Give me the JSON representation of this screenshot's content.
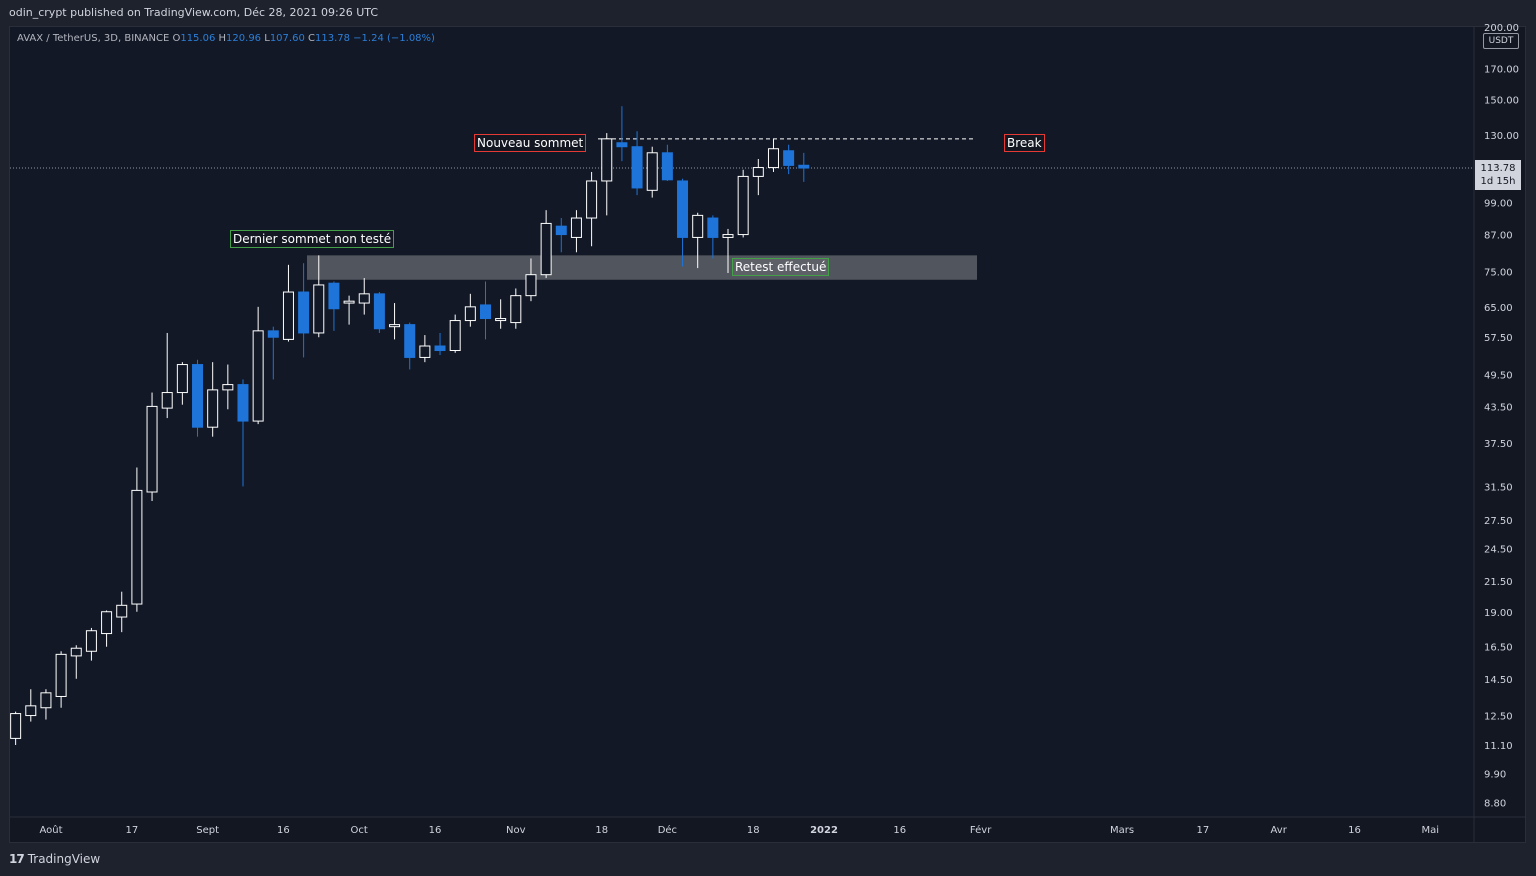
{
  "header": {
    "published": "odin_crypt published on TradingView.com, Déc 28, 2021 09:26 UTC"
  },
  "legend": {
    "symbol": "AVAX / TetherUS, 3D, BINANCE",
    "o_label": "O",
    "o_value": "115.06",
    "h_label": "H",
    "h_value": "120.96",
    "l_label": "L",
    "l_value": "107.60",
    "c_label": "C",
    "c_value": "113.78",
    "change": "−1.24 (−1.08%)"
  },
  "price_axis": {
    "currency": "USDT",
    "top_partial": "200.00",
    "current_price": "113.78",
    "countdown": "1d 15h"
  },
  "annotations": {
    "nouveau_sommet": "Nouveau sommet",
    "break": "Break",
    "dernier_sommet": "Dernier sommet non testé",
    "retest": "Retest effectué"
  },
  "footer": {
    "brand": "TradingView"
  },
  "colors": {
    "background": "#121826",
    "up_candle": "#ffffff",
    "down_candle": "#1e74d8",
    "zone": "#5d6067",
    "red_box": "#e53935",
    "green_box": "#43a047"
  },
  "chart_data": {
    "type": "candlestick",
    "scale": "log",
    "ylim": [
      8.0,
      200.0
    ],
    "yticks": [
      170,
      150,
      130,
      99,
      87,
      75,
      65,
      57.5,
      49.5,
      43.5,
      37.5,
      31.5,
      27.5,
      24.5,
      21.5,
      19,
      16.5,
      14.5,
      12.5,
      11.1,
      9.9,
      8.8
    ],
    "ytick_labels": [
      "170.00",
      "150.00",
      "130.00",
      "99.00",
      "87.00",
      "75.00",
      "65.00",
      "57.50",
      "49.50",
      "43.50",
      "37.50",
      "31.50",
      "27.50",
      "24.50",
      "21.50",
      "19.00",
      "16.50",
      "14.50",
      "12.50",
      "11.10",
      "9.90",
      "8.80"
    ],
    "xlim": [
      "2021-07-22",
      "2022-05-30"
    ],
    "xticks": [
      {
        "date": "2021-08-01",
        "label": "Août"
      },
      {
        "date": "2021-08-17",
        "label": "17"
      },
      {
        "date": "2021-09-01",
        "label": "Sept"
      },
      {
        "date": "2021-09-16",
        "label": "16"
      },
      {
        "date": "2021-10-01",
        "label": "Oct"
      },
      {
        "date": "2021-10-16",
        "label": "16"
      },
      {
        "date": "2021-11-01",
        "label": "Nov"
      },
      {
        "date": "2021-11-18",
        "label": "18"
      },
      {
        "date": "2021-12-01",
        "label": "Déc"
      },
      {
        "date": "2021-12-18",
        "label": "18"
      },
      {
        "date": "2022-01-01",
        "label": "2022"
      },
      {
        "date": "2022-01-16",
        "label": "16"
      },
      {
        "date": "2022-02-01",
        "label": "Févr"
      },
      {
        "date": "2022-03-01",
        "label": "Mars"
      },
      {
        "date": "2022-03-17",
        "label": "17"
      },
      {
        "date": "2022-04-01",
        "label": "Avr"
      },
      {
        "date": "2022-04-16",
        "label": "16"
      },
      {
        "date": "2022-05-01",
        "label": "Mai"
      }
    ],
    "candles": [
      {
        "date": "2021-07-22",
        "o": 11.2,
        "h": 11.6,
        "l": 10.9,
        "c": 11.5
      },
      {
        "date": "2021-07-25",
        "o": 11.4,
        "h": 12.7,
        "l": 11.1,
        "c": 12.6
      },
      {
        "date": "2021-07-28",
        "o": 12.5,
        "h": 13.9,
        "l": 12.2,
        "c": 13.0
      },
      {
        "date": "2021-07-31",
        "o": 12.9,
        "h": 13.9,
        "l": 12.3,
        "c": 13.7
      },
      {
        "date": "2021-08-03",
        "o": 13.5,
        "h": 16.2,
        "l": 12.9,
        "c": 16.0
      },
      {
        "date": "2021-08-06",
        "o": 15.9,
        "h": 16.6,
        "l": 14.5,
        "c": 16.4
      },
      {
        "date": "2021-08-09",
        "o": 16.2,
        "h": 17.8,
        "l": 15.6,
        "c": 17.6
      },
      {
        "date": "2021-08-12",
        "o": 17.4,
        "h": 19.1,
        "l": 16.5,
        "c": 19.0
      },
      {
        "date": "2021-08-15",
        "o": 18.6,
        "h": 20.6,
        "l": 17.5,
        "c": 19.5
      },
      {
        "date": "2021-08-18",
        "o": 19.6,
        "h": 34.0,
        "l": 19.0,
        "c": 31.0
      },
      {
        "date": "2021-08-21",
        "o": 30.8,
        "h": 46.0,
        "l": 29.7,
        "c": 43.5
      },
      {
        "date": "2021-08-24",
        "o": 43.2,
        "h": 58.5,
        "l": 41.5,
        "c": 46.0
      },
      {
        "date": "2021-08-27",
        "o": 46.0,
        "h": 52.0,
        "l": 43.8,
        "c": 51.5
      },
      {
        "date": "2021-08-30",
        "o": 51.5,
        "h": 52.5,
        "l": 38.5,
        "c": 40.0
      },
      {
        "date": "2021-09-02",
        "o": 40.0,
        "h": 52.0,
        "l": 38.5,
        "c": 46.5
      },
      {
        "date": "2021-09-05",
        "o": 46.5,
        "h": 51.5,
        "l": 43.0,
        "c": 47.5
      },
      {
        "date": "2021-09-08",
        "o": 47.5,
        "h": 48.5,
        "l": 31.5,
        "c": 41.0
      },
      {
        "date": "2021-09-11",
        "o": 41.0,
        "h": 65.0,
        "l": 40.5,
        "c": 59.0
      },
      {
        "date": "2021-09-14",
        "o": 59.0,
        "h": 60.0,
        "l": 48.5,
        "c": 57.5
      },
      {
        "date": "2021-09-17",
        "o": 57.0,
        "h": 77.0,
        "l": 56.5,
        "c": 69.0
      },
      {
        "date": "2021-09-20",
        "o": 69.0,
        "h": 77.5,
        "l": 53.0,
        "c": 58.5
      },
      {
        "date": "2021-09-23",
        "o": 58.5,
        "h": 80.0,
        "l": 57.5,
        "c": 71.0
      },
      {
        "date": "2021-09-26",
        "o": 71.5,
        "h": 72.0,
        "l": 59.0,
        "c": 64.5
      },
      {
        "date": "2021-09-29",
        "o": 66.0,
        "h": 68.0,
        "l": 60.5,
        "c": 66.5
      },
      {
        "date": "2021-10-02",
        "o": 66.0,
        "h": 73.0,
        "l": 63.0,
        "c": 68.5
      },
      {
        "date": "2021-10-05",
        "o": 68.5,
        "h": 69.0,
        "l": 58.5,
        "c": 59.5
      },
      {
        "date": "2021-10-08",
        "o": 60.0,
        "h": 66.0,
        "l": 57.0,
        "c": 60.5
      },
      {
        "date": "2021-10-11",
        "o": 60.5,
        "h": 61.0,
        "l": 50.5,
        "c": 53.0
      },
      {
        "date": "2021-10-14",
        "o": 53.0,
        "h": 58.0,
        "l": 52.0,
        "c": 55.5
      },
      {
        "date": "2021-10-17",
        "o": 55.5,
        "h": 58.5,
        "l": 53.5,
        "c": 54.5
      },
      {
        "date": "2021-10-20",
        "o": 54.5,
        "h": 63.0,
        "l": 54.0,
        "c": 61.5
      },
      {
        "date": "2021-10-23",
        "o": 61.5,
        "h": 68.5,
        "l": 60.0,
        "c": 65.0
      },
      {
        "date": "2021-10-26",
        "o": 65.5,
        "h": 72.0,
        "l": 57.0,
        "c": 62.0
      },
      {
        "date": "2021-10-29",
        "o": 61.5,
        "h": 67.0,
        "l": 59.5,
        "c": 62.0
      },
      {
        "date": "2021-11-01",
        "o": 61.0,
        "h": 70.0,
        "l": 59.5,
        "c": 68.0
      },
      {
        "date": "2021-11-04",
        "o": 68.0,
        "h": 79.0,
        "l": 66.5,
        "c": 74.0
      },
      {
        "date": "2021-11-07",
        "o": 74.0,
        "h": 96.0,
        "l": 73.0,
        "c": 91.0
      },
      {
        "date": "2021-11-10",
        "o": 90.0,
        "h": 93.0,
        "l": 81.0,
        "c": 87.0
      },
      {
        "date": "2021-11-13",
        "o": 86.0,
        "h": 96.0,
        "l": 81.0,
        "c": 93.0
      },
      {
        "date": "2021-11-16",
        "o": 93.0,
        "h": 112.0,
        "l": 83.0,
        "c": 108.0
      },
      {
        "date": "2021-11-19",
        "o": 108.0,
        "h": 131.0,
        "l": 94.0,
        "c": 128.0
      },
      {
        "date": "2021-11-22",
        "o": 126.0,
        "h": 146.0,
        "l": 117.0,
        "c": 124.0
      },
      {
        "date": "2021-11-25",
        "o": 124.0,
        "h": 132.0,
        "l": 102.0,
        "c": 105.0
      },
      {
        "date": "2021-11-28",
        "o": 104.0,
        "h": 124.0,
        "l": 101.0,
        "c": 121.0
      },
      {
        "date": "2021-12-01",
        "o": 121.0,
        "h": 125.0,
        "l": 108.0,
        "c": 108.5
      },
      {
        "date": "2021-12-04",
        "o": 108.0,
        "h": 109.0,
        "l": 76.5,
        "c": 86.0
      },
      {
        "date": "2021-12-07",
        "o": 86.0,
        "h": 95.0,
        "l": 76.0,
        "c": 94.0
      },
      {
        "date": "2021-12-10",
        "o": 93.0,
        "h": 94.0,
        "l": 79.0,
        "c": 86.0
      },
      {
        "date": "2021-12-13",
        "o": 86.0,
        "h": 89.0,
        "l": 74.5,
        "c": 87.0
      },
      {
        "date": "2021-12-16",
        "o": 87.0,
        "h": 113.0,
        "l": 86.0,
        "c": 110.0
      },
      {
        "date": "2021-12-19",
        "o": 110.0,
        "h": 118.0,
        "l": 102.0,
        "c": 114.0
      },
      {
        "date": "2021-12-22",
        "o": 114.0,
        "h": 128.0,
        "l": 112.0,
        "c": 123.0
      },
      {
        "date": "2021-12-25",
        "o": 122.0,
        "h": 125.0,
        "l": 111.0,
        "c": 115.0
      },
      {
        "date": "2021-12-28",
        "o": 115.06,
        "h": 120.96,
        "l": 107.6,
        "c": 113.78
      }
    ],
    "resistance_level": 128.0,
    "zone": [
      72.5,
      80.0
    ],
    "current_price": 113.78
  }
}
